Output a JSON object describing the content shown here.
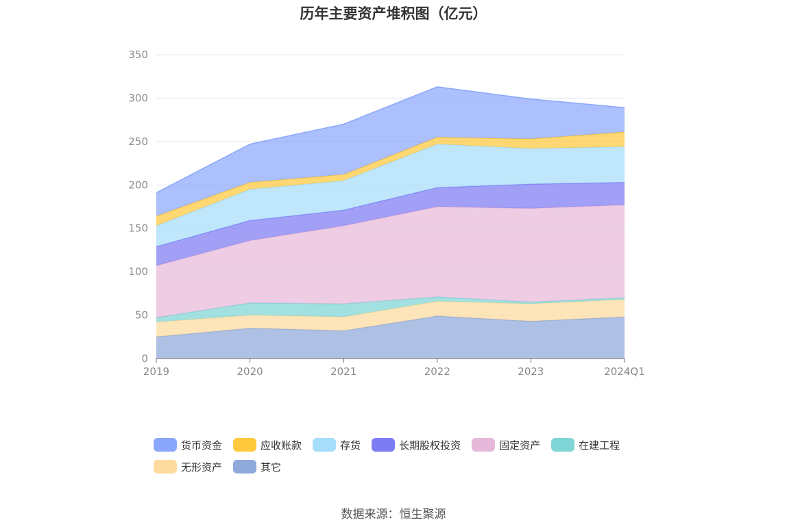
{
  "title": "历年主要资产堆积图（亿元）",
  "source": "数据来源：恒生聚源",
  "chart_data": {
    "type": "area",
    "stacked": true,
    "categories": [
      "2019",
      "2020",
      "2021",
      "2022",
      "2023",
      "2024Q1"
    ],
    "ylim": [
      0,
      350
    ],
    "yticks": [
      0,
      50,
      100,
      150,
      200,
      250,
      300,
      350
    ],
    "grid": true,
    "legend_position": "bottom",
    "series": [
      {
        "name": "其它",
        "color": "#8fa9db",
        "values": [
          25,
          35,
          32,
          49,
          43,
          48
        ]
      },
      {
        "name": "无形资产",
        "color": "#fddb9e",
        "values": [
          17,
          15,
          16,
          17,
          20,
          20
        ]
      },
      {
        "name": "在建工程",
        "color": "#80d5d6",
        "values": [
          5,
          14,
          15,
          5,
          2,
          2
        ]
      },
      {
        "name": "固定资产",
        "color": "#e6b8d9",
        "values": [
          60,
          72,
          90,
          104,
          108,
          107
        ]
      },
      {
        "name": "长期股权投资",
        "color": "#7d7cf3",
        "values": [
          22,
          23,
          18,
          22,
          28,
          26
        ]
      },
      {
        "name": "存货",
        "color": "#a6ddfa",
        "values": [
          24,
          36,
          34,
          50,
          41,
          41
        ]
      },
      {
        "name": "应收账款",
        "color": "#ffc83d",
        "values": [
          11,
          8,
          7,
          8,
          11,
          17
        ]
      },
      {
        "name": "货币资金",
        "color": "#8aa7fb",
        "values": [
          27,
          44,
          58,
          58,
          46,
          28
        ]
      }
    ],
    "legend_order": [
      "货币资金",
      "应收账款",
      "存货",
      "长期股权投资",
      "固定资产",
      "在建工程",
      "无形资产",
      "其它"
    ]
  }
}
